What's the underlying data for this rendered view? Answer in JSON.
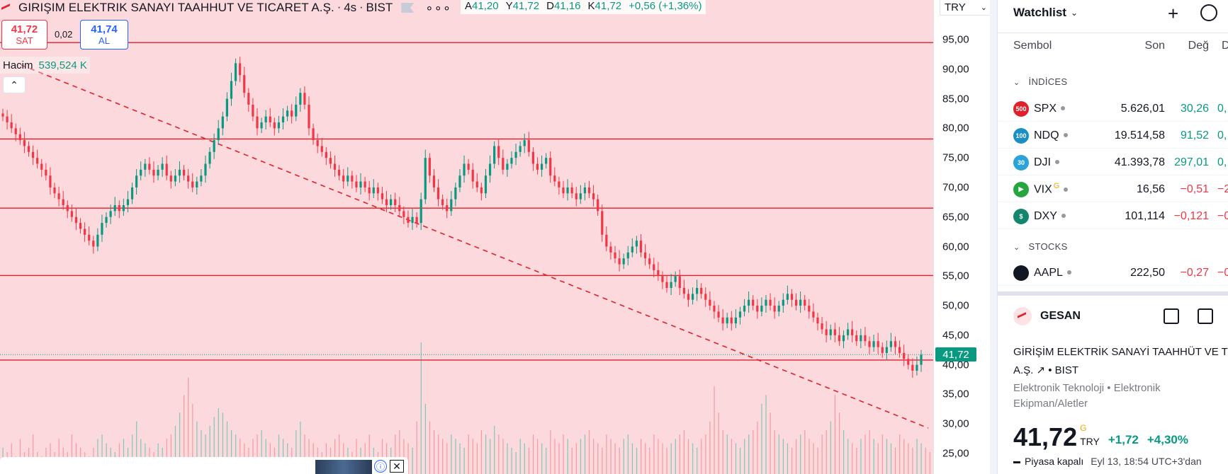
{
  "header": {
    "title": "GIRIŞIM ELEKTRIK SANAYI TAAHHUT VE TICARET A.Ş.",
    "sep": "·",
    "interval": "4s",
    "exchange": "BIST",
    "more": "∘∘∘"
  },
  "ohlc": {
    "open_k": "A",
    "open_v": "41,20",
    "high_k": "Y",
    "high_v": "41,72",
    "low_k": "D",
    "low_v": "41,16",
    "close_k": "K",
    "close_v": "41,72",
    "change": "+0,56 (+1,36%)"
  },
  "trade": {
    "sell_price": "41,72",
    "sell_label": "SAT",
    "spread": "0,02",
    "buy_price": "41,74",
    "buy_label": "AL"
  },
  "volume": {
    "label": "Hacim",
    "value": "539,524 K"
  },
  "price_scale": {
    "currency": "TRY",
    "ticks": [
      "95,00",
      "90,00",
      "85,00",
      "80,00",
      "75,00",
      "70,00",
      "65,00",
      "60,00",
      "55,00",
      "50,00",
      "45,00",
      "40,00",
      "35,00",
      "30,00",
      "25,00"
    ],
    "last_price": "41,72"
  },
  "chart_data": {
    "type": "candlestick",
    "ylim": [
      22,
      98
    ],
    "last_price": 41.72,
    "horizontal_levels": [
      94.5,
      78.2,
      66.5,
      55.1,
      40.8
    ],
    "trendline": {
      "start": [
        0,
        90.7
      ],
      "end": [
        1,
        29.3
      ]
    },
    "closes": [
      82,
      81,
      80,
      79,
      78,
      77,
      76,
      75,
      74,
      73,
      72,
      70,
      69,
      68,
      67,
      66,
      65,
      64,
      63,
      62,
      61,
      60,
      62,
      64,
      65,
      66,
      67,
      66,
      67,
      68,
      70,
      72,
      73,
      74,
      73,
      72,
      73,
      74,
      72,
      71,
      72,
      73,
      72,
      71,
      70,
      71,
      72,
      74,
      76,
      78,
      80,
      82,
      85,
      88,
      91,
      89,
      86,
      84,
      82,
      80,
      81,
      82,
      81,
      80,
      81,
      82,
      83,
      82,
      84,
      86,
      84,
      80,
      78,
      77,
      76,
      75,
      74,
      73,
      72,
      71,
      72,
      71,
      70,
      71,
      70,
      69,
      70,
      69,
      68,
      67,
      68,
      67,
      66,
      65,
      64,
      65,
      64,
      68,
      75,
      72,
      70,
      68,
      67,
      66,
      68,
      70,
      72,
      74,
      73,
      71,
      70,
      69,
      72,
      74,
      77,
      75,
      73,
      74,
      75,
      76,
      77,
      78,
      76,
      74,
      73,
      74,
      75,
      72,
      71,
      70,
      69,
      70,
      69,
      68,
      69,
      70,
      69,
      68,
      66,
      62,
      60,
      59,
      58,
      57,
      58,
      59,
      60,
      61,
      59,
      58,
      57,
      56,
      55,
      54,
      53,
      54,
      55,
      53,
      52,
      51,
      52,
      53,
      52,
      51,
      50,
      49,
      48,
      47,
      48,
      47,
      48,
      49,
      50,
      51,
      50,
      49,
      50,
      51,
      50,
      49,
      50,
      51,
      52,
      51,
      50,
      51,
      50,
      49,
      48,
      47,
      46,
      45,
      46,
      45,
      44,
      45,
      46,
      45,
      44,
      45,
      44,
      43,
      44,
      43,
      42,
      43,
      44,
      43,
      42,
      41,
      40,
      39,
      40,
      41.72
    ],
    "volume": [
      6,
      5,
      7,
      4,
      8,
      5,
      6,
      9,
      5,
      4,
      6,
      7,
      5,
      8,
      6,
      5,
      9,
      7,
      6,
      5,
      4,
      6,
      8,
      9,
      7,
      6,
      5,
      7,
      8,
      6,
      9,
      12,
      8,
      7,
      6,
      5,
      7,
      6,
      8,
      9,
      11,
      14,
      18,
      22,
      16,
      12,
      10,
      9,
      11,
      13,
      15,
      14,
      12,
      10,
      9,
      8,
      7,
      6,
      8,
      9,
      10,
      8,
      7,
      6,
      9,
      8,
      7,
      6,
      10,
      12,
      9,
      8,
      7,
      6,
      5,
      7,
      6,
      8,
      9,
      7,
      6,
      5,
      8,
      6,
      7,
      9,
      6,
      5,
      8,
      7,
      6,
      9,
      10,
      8,
      7,
      6,
      12,
      30,
      16,
      12,
      10,
      9,
      8,
      7,
      9,
      8,
      7,
      6,
      9,
      8,
      7,
      10,
      9,
      8,
      11,
      9,
      8,
      7,
      6,
      5,
      8,
      7,
      6,
      9,
      8,
      7,
      6,
      10,
      8,
      7,
      9,
      8,
      6,
      7,
      8,
      9,
      10,
      8,
      7,
      6,
      9,
      8,
      7,
      6,
      8,
      9,
      7,
      6,
      8,
      7,
      6,
      9,
      8,
      7,
      6,
      7,
      8,
      9,
      10,
      8,
      7,
      6,
      8,
      9,
      12,
      20,
      14,
      10,
      9,
      8,
      7,
      6,
      8,
      9,
      10,
      12,
      16,
      18,
      14,
      10,
      9,
      8,
      7,
      6,
      8,
      9,
      10,
      8,
      7,
      6,
      9,
      10,
      12,
      18,
      14,
      10,
      8,
      7,
      6,
      8,
      9,
      10,
      8,
      7,
      9,
      8,
      7,
      6,
      9,
      8,
      7,
      6,
      8,
      7,
      6,
      5,
      7,
      6,
      8,
      9
    ]
  },
  "ad": {
    "info": "ⓘ",
    "close": "✕"
  },
  "watchlist": {
    "title": "Watchlist",
    "add": "+",
    "cols": {
      "sym": "Sembol",
      "last": "Son",
      "chg": "Değ",
      "pct": "D"
    },
    "group1": "İNDİCES",
    "group2": "STOCKS",
    "rows": [
      {
        "badge": "500",
        "badge_color": "#e0202b",
        "sym": "SPX",
        "last": "5.626,01",
        "chg": "30,26",
        "pct": "0,",
        "dir": "pos"
      },
      {
        "badge": "100",
        "badge_color": "#1a8fc7",
        "sym": "NDQ",
        "last": "19.514,58",
        "chg": "91,52",
        "pct": "0,",
        "dir": "pos"
      },
      {
        "badge": "30",
        "badge_color": "#29a3d8",
        "sym": "DJI",
        "last": "41.393,78",
        "chg": "297,01",
        "pct": "0,",
        "dir": "pos"
      },
      {
        "badge": "▶",
        "badge_color": "#26a641",
        "sym": "VIX",
        "sup": "G",
        "last": "16,56",
        "chg": "−0,51",
        "pct": "−2,",
        "dir": "neg"
      },
      {
        "badge": "$",
        "badge_color": "#14866d",
        "sym": "DXY",
        "last": "101,114",
        "chg": "−0,121",
        "pct": "−0,",
        "dir": "neg"
      },
      {
        "badge": "",
        "badge_color": "#131722",
        "sym": "AAPL",
        "last": "222,50",
        "chg": "−0,27",
        "pct": "−0,",
        "dir": "neg"
      }
    ]
  },
  "details": {
    "ticker": "GESAN",
    "name_line1": "GİRİŞİM ELEKTRİK SANAYİ TAAHHÜT VE TİCARET",
    "name_line2": "A.Ş. ↗ • BIST",
    "sector": "Elektronik Teknoloji • Elektronik Ekipman/Aletler",
    "price": "41,72",
    "price_sup": "G",
    "currency": "TRY",
    "change": "+1,72",
    "change_pct": "+4,30%",
    "status": "Piyasa kapalı",
    "status_time": "Eyl 13, 18:54 UTC+3'dan"
  }
}
